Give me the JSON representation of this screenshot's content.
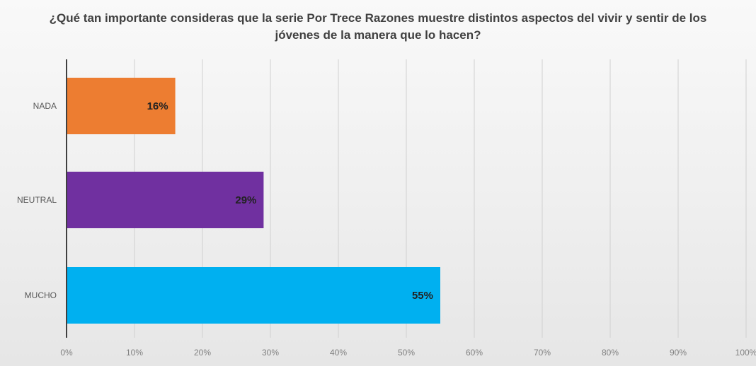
{
  "chart_data": {
    "type": "bar",
    "orientation": "horizontal",
    "title": "¿Qué tan importante consideras que la serie Por Trece Razones muestre distintos aspectos del vivir y sentir de los jóvenes de la manera que lo hacen?",
    "categories": [
      "NADA",
      "NEUTRAL",
      "MUCHO"
    ],
    "values": [
      16,
      29,
      55
    ],
    "data_labels": [
      "16%",
      "29%",
      "55%"
    ],
    "colors": [
      "#ED7D31",
      "#7030A0",
      "#00B0F0"
    ],
    "xlim": [
      0,
      100
    ],
    "xticks": [
      0,
      10,
      20,
      30,
      40,
      50,
      60,
      70,
      80,
      90,
      100
    ],
    "xtick_labels": [
      "0%",
      "10%",
      "20%",
      "30%",
      "40%",
      "50%",
      "60%",
      "70%",
      "80%",
      "90%",
      "100%"
    ],
    "xlabel": "",
    "ylabel": "",
    "grid": true,
    "legend": "none"
  }
}
